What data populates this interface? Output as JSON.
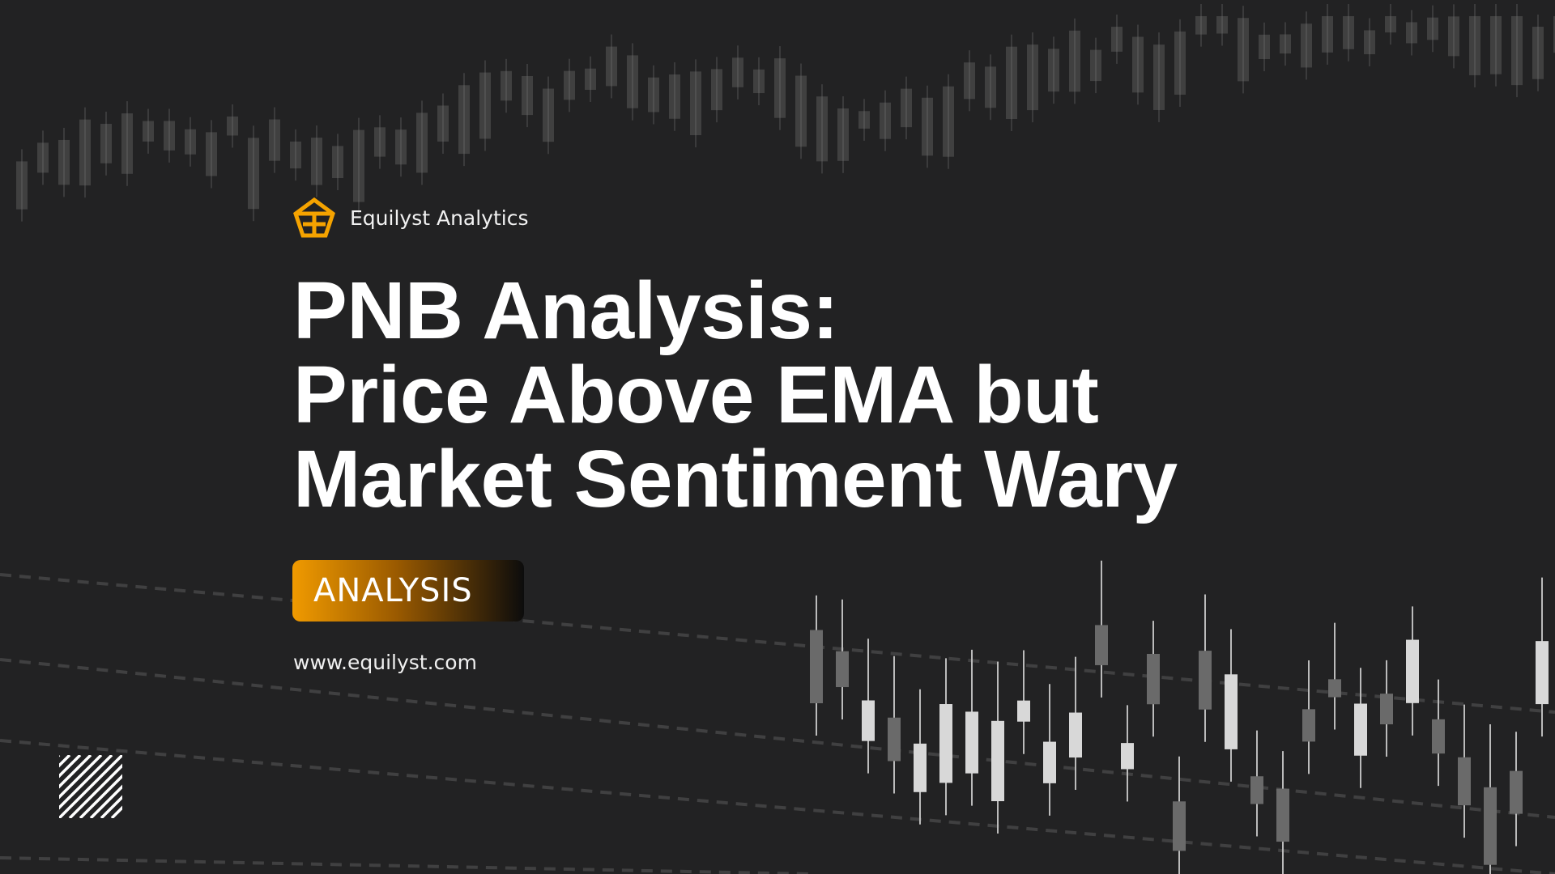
{
  "brand": {
    "name": "Equilyst Analytics",
    "logo_icon": "pentagon-ea-logo-icon",
    "accent_color": "#F5A300"
  },
  "title": {
    "lines": [
      "PNB Analysis:",
      "Price Above EMA but",
      "Market Sentiment Wary"
    ]
  },
  "badge": {
    "label": "ANALYSIS"
  },
  "website": "www.equilyst.com",
  "decor": {
    "icon": "diagonal-hatch-icon",
    "background": "candlestick-chart-backdrop"
  }
}
